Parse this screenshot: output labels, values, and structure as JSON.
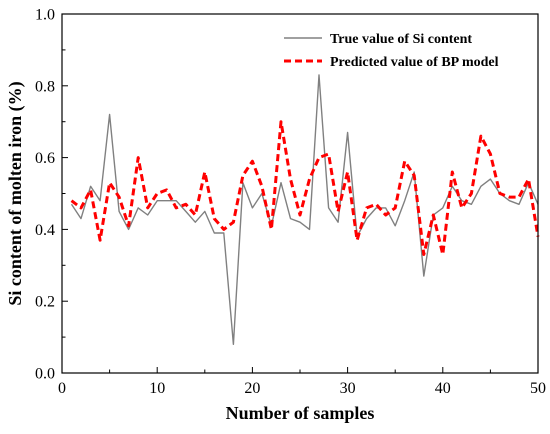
{
  "chart_data": {
    "type": "line",
    "title": "",
    "xlabel": "Number of samples",
    "ylabel": "Si content of molten iron (%)",
    "xlim": [
      0,
      50
    ],
    "ylim": [
      0.0,
      1.0
    ],
    "xticks": [
      0,
      10,
      20,
      30,
      40,
      50
    ],
    "yticks": [
      0.0,
      0.2,
      0.4,
      0.6,
      0.8,
      1.0
    ],
    "xtick_labels": [
      "0",
      "10",
      "20",
      "30",
      "40",
      "50"
    ],
    "ytick_labels": [
      "0.0",
      "0.2",
      "0.4",
      "0.6",
      "0.8",
      "1.0"
    ],
    "grid": false,
    "legend_position": "top-right",
    "x": [
      1,
      2,
      3,
      4,
      5,
      6,
      7,
      8,
      9,
      10,
      11,
      12,
      13,
      14,
      15,
      16,
      17,
      18,
      19,
      20,
      21,
      22,
      23,
      24,
      25,
      26,
      27,
      28,
      29,
      30,
      31,
      32,
      33,
      34,
      35,
      36,
      37,
      38,
      39,
      40,
      41,
      42,
      43,
      44,
      45,
      46,
      47,
      48,
      49,
      50
    ],
    "series": [
      {
        "name": "True value of Si content",
        "color": "#808080",
        "style": "solid",
        "values": [
          0.47,
          0.43,
          0.52,
          0.48,
          0.72,
          0.45,
          0.4,
          0.46,
          0.44,
          0.48,
          0.48,
          0.48,
          0.45,
          0.42,
          0.45,
          0.39,
          0.39,
          0.08,
          0.53,
          0.46,
          0.5,
          0.41,
          0.53,
          0.43,
          0.42,
          0.4,
          0.83,
          0.46,
          0.42,
          0.67,
          0.38,
          0.43,
          0.46,
          0.46,
          0.41,
          0.48,
          0.56,
          0.27,
          0.44,
          0.46,
          0.52,
          0.48,
          0.47,
          0.52,
          0.54,
          0.5,
          0.48,
          0.47,
          0.53,
          0.47
        ]
      },
      {
        "name": "Predicted value of BP model",
        "color": "#ff0000",
        "style": "dashed",
        "values": [
          0.48,
          0.46,
          0.51,
          0.37,
          0.53,
          0.49,
          0.41,
          0.6,
          0.46,
          0.5,
          0.51,
          0.46,
          0.47,
          0.44,
          0.56,
          0.43,
          0.4,
          0.42,
          0.55,
          0.59,
          0.52,
          0.4,
          0.7,
          0.54,
          0.44,
          0.54,
          0.6,
          0.61,
          0.45,
          0.56,
          0.37,
          0.46,
          0.47,
          0.44,
          0.46,
          0.59,
          0.55,
          0.33,
          0.44,
          0.33,
          0.56,
          0.46,
          0.5,
          0.66,
          0.61,
          0.5,
          0.49,
          0.49,
          0.54,
          0.38
        ]
      }
    ]
  }
}
